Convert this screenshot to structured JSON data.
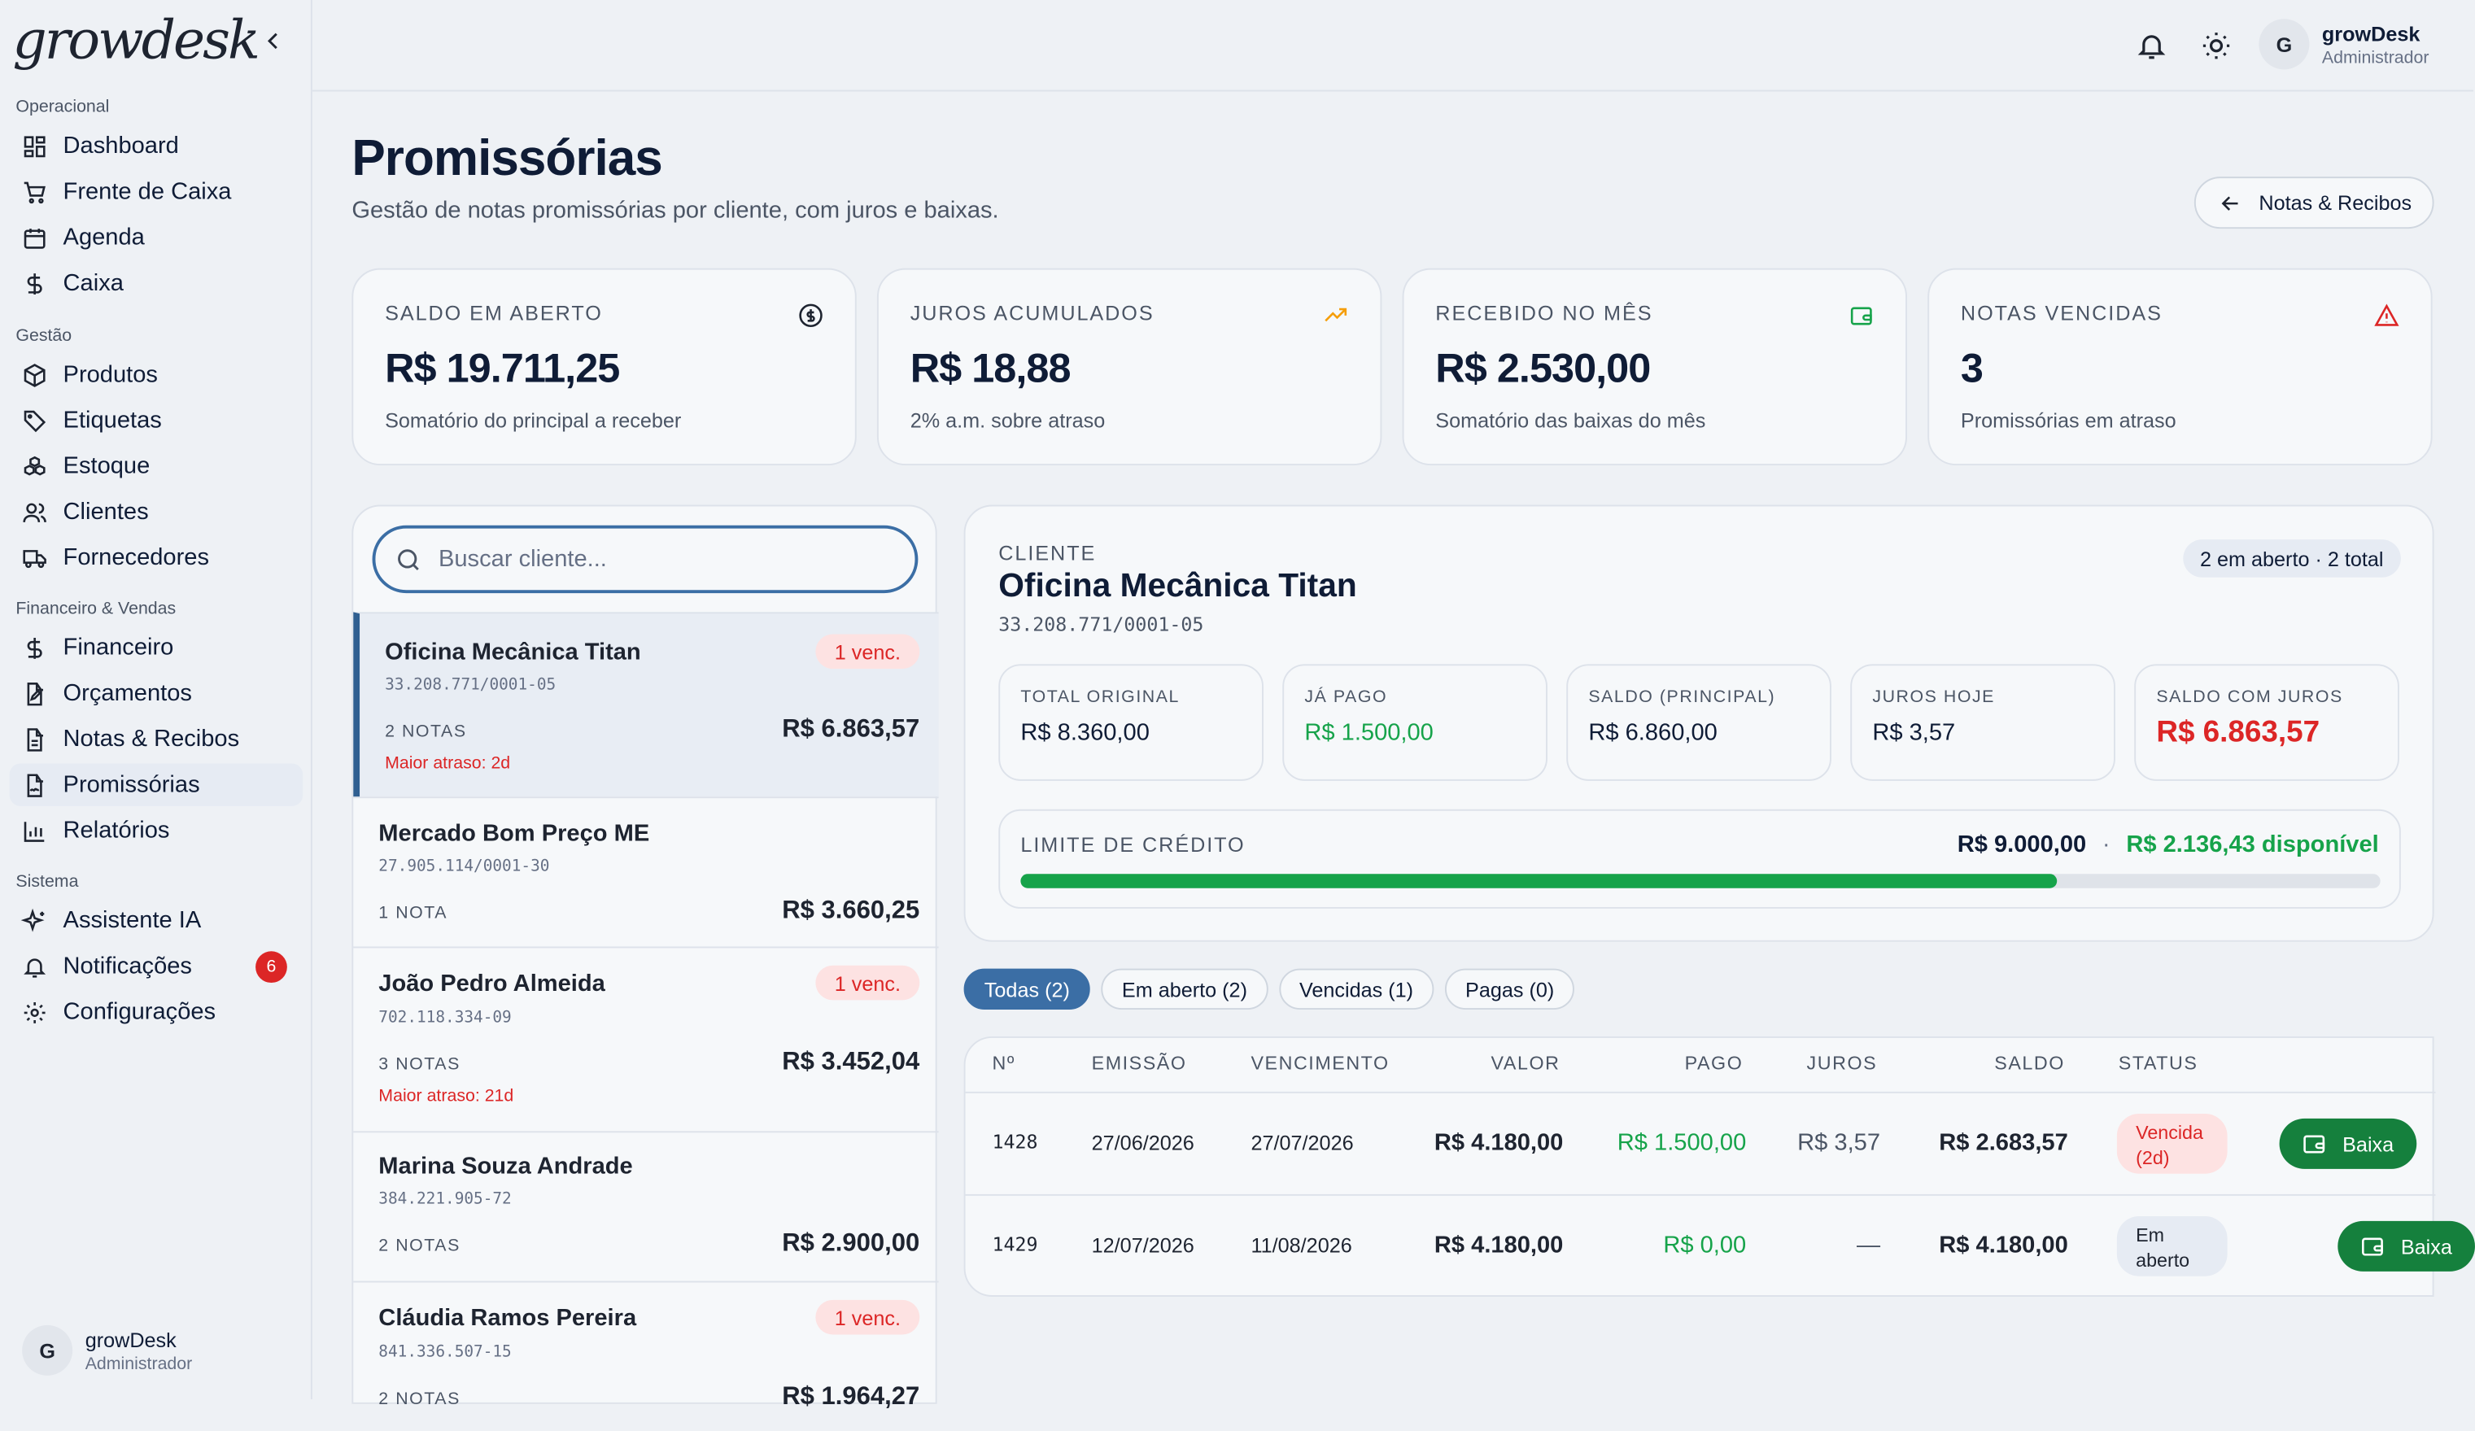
{
  "app": {
    "logo": "growdesk"
  },
  "sidebar": {
    "groups": [
      {
        "label": "Operacional",
        "items": [
          {
            "label": "Dashboard",
            "icon": "dashboard-icon"
          },
          {
            "label": "Frente de Caixa",
            "icon": "cart-icon"
          },
          {
            "label": "Agenda",
            "icon": "calendar-icon"
          },
          {
            "label": "Caixa",
            "icon": "dollar-icon"
          }
        ]
      },
      {
        "label": "Gestão",
        "items": [
          {
            "label": "Produtos",
            "icon": "box-icon"
          },
          {
            "label": "Etiquetas",
            "icon": "tag-icon"
          },
          {
            "label": "Estoque",
            "icon": "boxes-icon"
          },
          {
            "label": "Clientes",
            "icon": "users-icon"
          },
          {
            "label": "Fornecedores",
            "icon": "truck-icon"
          }
        ]
      },
      {
        "label": "Financeiro & Vendas",
        "items": [
          {
            "label": "Financeiro",
            "icon": "dollar-icon"
          },
          {
            "label": "Orçamentos",
            "icon": "file-edit-icon"
          },
          {
            "label": "Notas & Recibos",
            "icon": "file-text-icon"
          },
          {
            "label": "Promissórias",
            "icon": "file-signature-icon"
          },
          {
            "label": "Relatórios",
            "icon": "bar-chart-icon"
          }
        ]
      },
      {
        "label": "Sistema",
        "items": [
          {
            "label": "Assistente IA",
            "icon": "sparkles-icon"
          },
          {
            "label": "Notificações",
            "icon": "bell-icon",
            "badge": "6"
          },
          {
            "label": "Configurações",
            "icon": "gear-icon"
          }
        ]
      }
    ],
    "user": {
      "initial": "G",
      "name": "growDesk",
      "role": "Administrador"
    }
  },
  "topbar": {
    "user": {
      "initial": "G",
      "name": "growDesk",
      "role": "Administrador"
    }
  },
  "page": {
    "title": "Promissórias",
    "subtitle": "Gestão de notas promissórias por cliente, com juros e baixas.",
    "back_button": "Notas & Recibos"
  },
  "stats": [
    {
      "label": "SALDO EM ABERTO",
      "value": "R$ 19.711,25",
      "sub": "Somatório do principal a receber",
      "icon": "dollar-circle-icon",
      "color": "#0f1c36"
    },
    {
      "label": "JUROS ACUMULADOS",
      "value": "R$ 18,88",
      "sub": "2% a.m. sobre atraso",
      "icon": "trending-up-icon",
      "color": "#f59e0b"
    },
    {
      "label": "RECEBIDO NO MÊS",
      "value": "R$ 2.530,00",
      "sub": "Somatório das baixas do mês",
      "icon": "wallet-icon",
      "color": "#16a34a"
    },
    {
      "label": "NOTAS VENCIDAS",
      "value": "3",
      "sub": "Promissórias em atraso",
      "icon": "alert-triangle-icon",
      "color": "#dc2626"
    }
  ],
  "search": {
    "placeholder": "Buscar cliente..."
  },
  "clients": [
    {
      "name": "Oficina Mecânica Titan",
      "doc": "33.208.771/0001-05",
      "notas": "2 NOTAS",
      "amount": "R$ 6.863,57",
      "venc": "1 venc.",
      "atraso": "Maior atraso: 2d",
      "active": true
    },
    {
      "name": "Mercado Bom Preço ME",
      "doc": "27.905.114/0001-30",
      "notas": "1 NOTA",
      "amount": "R$ 3.660,25"
    },
    {
      "name": "João Pedro Almeida",
      "doc": "702.118.334-09",
      "notas": "3 NOTAS",
      "amount": "R$ 3.452,04",
      "venc": "1 venc.",
      "atraso": "Maior atraso: 21d"
    },
    {
      "name": "Marina Souza Andrade",
      "doc": "384.221.905-72",
      "notas": "2 NOTAS",
      "amount": "R$ 2.900,00"
    },
    {
      "name": "Cláudia Ramos Pereira",
      "doc": "841.336.507-15",
      "notas": "2 NOTAS",
      "amount": "R$ 1.964,27",
      "venc": "1 venc."
    }
  ],
  "detail": {
    "label": "CLIENTE",
    "name": "Oficina Mecânica Titan",
    "doc": "33.208.771/0001-05",
    "badge": "2 em aberto · 2 total",
    "metrics": [
      {
        "label": "TOTAL ORIGINAL",
        "value": "R$ 8.360,00"
      },
      {
        "label": "JÁ PAGO",
        "value": "R$ 1.500,00"
      },
      {
        "label": "SALDO (PRINCIPAL)",
        "value": "R$ 6.860,00"
      },
      {
        "label": "JUROS HOJE",
        "value": "R$ 3,57"
      },
      {
        "label": "SALDO COM JUROS",
        "value": "R$ 6.863,57"
      }
    ],
    "credit": {
      "label": "LIMITE DE CRÉDITO",
      "limit": "R$ 9.000,00",
      "sep": "·",
      "available": "R$ 2.136,43 disponível",
      "used_fraction": 0.7626
    }
  },
  "filters": [
    {
      "label": "Todas (2)",
      "active": true
    },
    {
      "label": "Em aberto (2)"
    },
    {
      "label": "Vencidas (1)"
    },
    {
      "label": "Pagas (0)"
    }
  ],
  "table": {
    "headers": [
      "Nº",
      "EMISSÃO",
      "VENCIMENTO",
      "VALOR",
      "PAGO",
      "JUROS",
      "SALDO",
      "STATUS"
    ],
    "rows": [
      {
        "n": "1428",
        "emissao": "27/06/2026",
        "vencimento": "27/07/2026",
        "valor": "R$ 4.180,00",
        "pago": "R$ 1.500,00",
        "juros": "R$ 3,57",
        "saldo": "R$ 2.683,57",
        "status": "Vencida (2d)",
        "action": "Baixa"
      },
      {
        "n": "1429",
        "emissao": "12/07/2026",
        "vencimento": "11/08/2026",
        "valor": "R$ 4.180,00",
        "pago": "R$ 0,00",
        "juros": "—",
        "saldo": "R$ 4.180,00",
        "status": "Em aberto",
        "action": "Baixa"
      }
    ]
  }
}
